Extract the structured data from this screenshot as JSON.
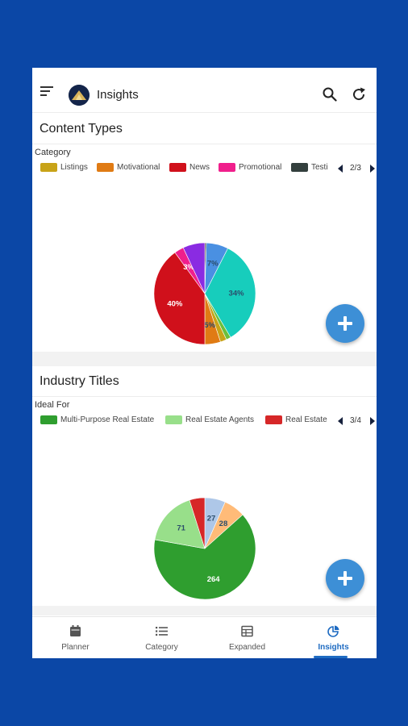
{
  "app": {
    "title": "Insights"
  },
  "colors": {
    "background": "#0B47A6",
    "accent": "#1e6bc2",
    "fab": "#3d8fd6"
  },
  "cards": [
    {
      "title": "Content Types",
      "subtitle": "Category",
      "legend": [
        {
          "label": "Listings",
          "color": "#c8a318"
        },
        {
          "label": "Motivational",
          "color": "#e07b14"
        },
        {
          "label": "News",
          "color": "#d0101b"
        },
        {
          "label": "Promotional",
          "color": "#f01f8c"
        },
        {
          "label": "Testi",
          "color": "#333f3d"
        }
      ],
      "legend_page": "2/3",
      "fab_icon": "plus-icon"
    },
    {
      "title": "Industry Titles",
      "subtitle": "Ideal For",
      "legend": [
        {
          "label": "Multi-Purpose Real Estate",
          "color": "#2f9e2f"
        },
        {
          "label": "Real Estate Agents",
          "color": "#98df8a"
        },
        {
          "label": "Real Estate",
          "color": "#d62728"
        }
      ],
      "legend_page": "3/4",
      "fab_icon": "plus-icon"
    }
  ],
  "chart_data": [
    {
      "type": "pie",
      "title": "Content Types",
      "subtitle": "Category",
      "slices": [
        {
          "name": "",
          "value": 0.5,
          "color": "#444444",
          "label": ""
        },
        {
          "name": "",
          "value": 7,
          "color": "#4a90e2",
          "label": "7%"
        },
        {
          "name": "",
          "value": 34,
          "color": "#17cdbc",
          "label": "34%"
        },
        {
          "name": "",
          "value": 1.5,
          "color": "#6bbf3b",
          "label": ""
        },
        {
          "name": "Listings",
          "value": 2,
          "color": "#c8a318",
          "label": ""
        },
        {
          "name": "Motivational",
          "value": 5,
          "color": "#e07b14",
          "label": "5%"
        },
        {
          "name": "News",
          "value": 40,
          "color": "#d0101b",
          "label": "40%"
        },
        {
          "name": "Promotional",
          "value": 3,
          "color": "#f01f8c",
          "label": "3%"
        },
        {
          "name": "",
          "value": 7,
          "color": "#8a2be2",
          "label": ""
        }
      ]
    },
    {
      "type": "pie",
      "title": "Industry Titles",
      "subtitle": "Ideal For",
      "slices": [
        {
          "name": "",
          "value": 27,
          "color": "#aec7e8",
          "label": "27"
        },
        {
          "name": "",
          "value": 28,
          "color": "#ffbb78",
          "label": "28"
        },
        {
          "name": "Multi-Purpose Real Estate",
          "value": 264,
          "color": "#2f9e2f",
          "label": "264"
        },
        {
          "name": "Real Estate Agents",
          "value": 71,
          "color": "#98df8a",
          "label": "71"
        },
        {
          "name": "Real Estate",
          "value": 20,
          "color": "#d62728",
          "label": ""
        }
      ]
    }
  ],
  "bottom_nav": {
    "items": [
      {
        "label": "Planner",
        "icon": "calendar-icon"
      },
      {
        "label": "Category",
        "icon": "list-icon"
      },
      {
        "label": "Expanded",
        "icon": "table-icon"
      },
      {
        "label": "Insights",
        "icon": "pie-chart-icon"
      }
    ],
    "active": "Insights"
  }
}
